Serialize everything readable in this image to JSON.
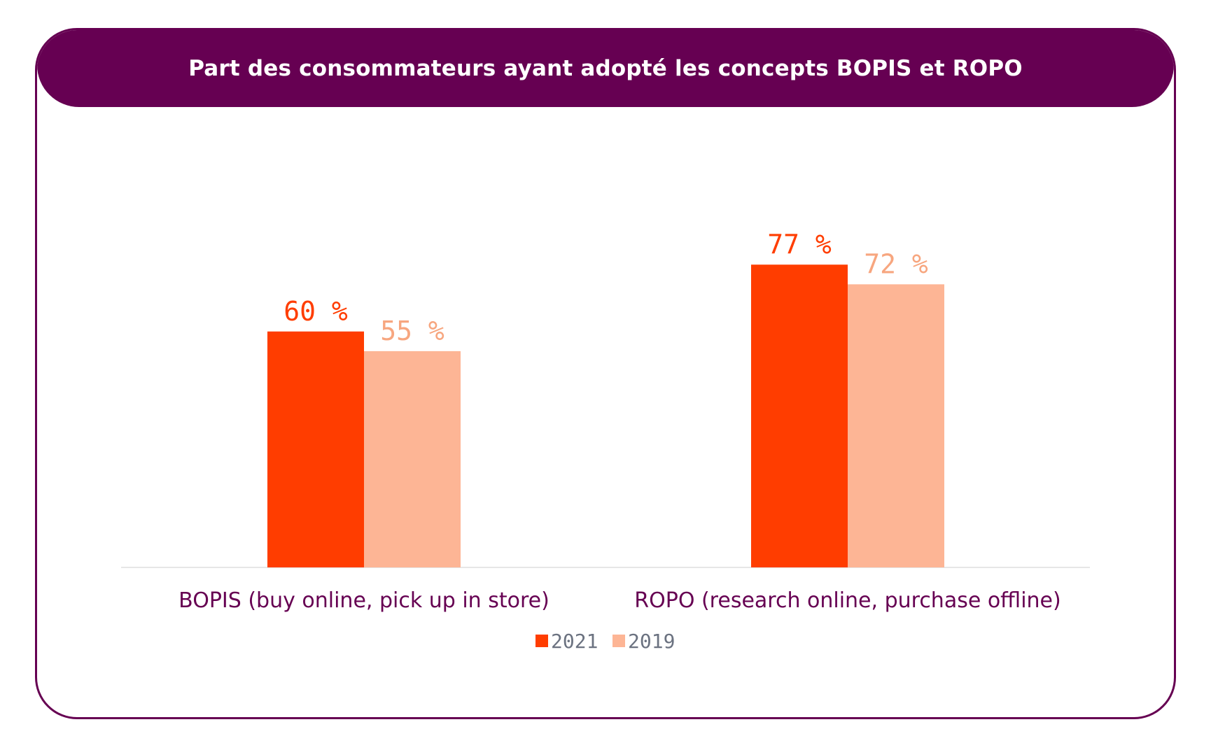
{
  "chart_data": {
    "type": "bar",
    "title": "Part des consommateurs ayant adopté les concepts BOPIS et ROPO",
    "categories": [
      "BOPIS (buy online, pick up in store)",
      "ROPO (research online, purchase offline)"
    ],
    "series": [
      {
        "name": "2021",
        "values": [
          60,
          77
        ],
        "labels": [
          "60 %",
          "77 %"
        ],
        "color": "#ff3d00"
      },
      {
        "name": "2019",
        "values": [
          55,
          72
        ],
        "labels": [
          "55 %",
          "72 %"
        ],
        "color": "#fdb595"
      }
    ],
    "ylim": [
      0,
      100
    ],
    "grid": false,
    "legend_position": "bottom-center"
  },
  "colors": {
    "accent": "#660052",
    "axis": "#e6e6e6",
    "label_2021": "#ff3d00",
    "label_2019": "#f7a67f"
  }
}
